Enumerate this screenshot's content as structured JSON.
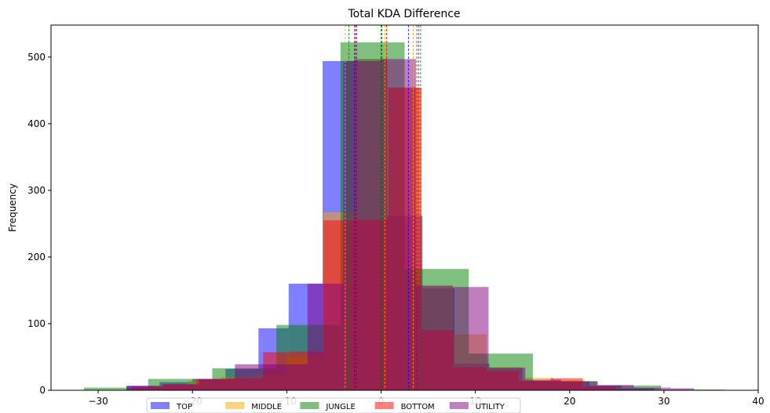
{
  "chart_data": {
    "type": "bar",
    "title": "Total KDA Difference",
    "xlabel": "",
    "ylabel": "Frequency",
    "xlim": [
      -35,
      40
    ],
    "ylim": [
      0,
      548
    ],
    "xticks": [
      -30,
      -20,
      -10,
      0,
      10,
      20,
      30,
      40
    ],
    "xtick_labels": [
      "−30",
      "−20",
      "−10",
      "0",
      "10",
      "20",
      "30",
      "40"
    ],
    "yticks": [
      0,
      100,
      200,
      300,
      400,
      500
    ],
    "ytick_labels": [
      "0",
      "100",
      "200",
      "300",
      "400",
      "500"
    ],
    "grid": false,
    "legend": {
      "placement": "bottom-center",
      "columns": 5
    },
    "series": [
      {
        "name": "TOP",
        "color": "#0000ff",
        "opacity": 0.5,
        "edges": [
          -27,
          -23.5,
          -20,
          -16.5,
          -13,
          -9.8,
          -6.2,
          -2.8,
          0.6,
          4.4,
          7.8,
          11.5,
          15,
          18.6,
          22.1,
          25.5,
          29
        ],
        "values": [
          7,
          12,
          17,
          32,
          93,
          160,
          494,
          497,
          262,
          153,
          40,
          33,
          14,
          13,
          7,
          3
        ],
        "vlines": [
          -2.8,
          2.9
        ]
      },
      {
        "name": "MIDDLE",
        "color": "#ffa500",
        "opacity": 0.5,
        "edges": [
          -24,
          -20.5,
          -17,
          -13.8,
          -10,
          -6.1,
          -2.5,
          0.7,
          4.1,
          7.6,
          11.2,
          14.8,
          18.3,
          21.6,
          25
        ],
        "values": [
          6,
          14,
          20,
          23,
          50,
          267,
          497,
          455,
          157,
          84,
          35,
          19,
          15,
          3
        ],
        "vlines": [
          -3.8,
          0.4,
          3.4
        ]
      },
      {
        "name": "JUNGLE",
        "color": "#008000",
        "opacity": 0.5,
        "edges": [
          -31.5,
          -24.7,
          -17.9,
          -11.1,
          -4.3,
          2.5,
          9.3,
          16.1,
          22.9,
          29.7,
          36.5
        ],
        "values": [
          4,
          17,
          33,
          98,
          522,
          182,
          55,
          14,
          7,
          1
        ],
        "vlines": [
          -3.4,
          0.1,
          4.2
        ]
      },
      {
        "name": "BOTTOM",
        "color": "#ff0000",
        "opacity": 0.5,
        "edges": [
          -26.5,
          -23,
          -19.6,
          -16.2,
          -12.5,
          -9.6,
          -6.1,
          -2.7,
          0.8,
          4.3,
          7.7,
          11.2,
          14.6,
          18,
          21.4,
          24.9
        ],
        "values": [
          6,
          9,
          17,
          18,
          57,
          58,
          255,
          256,
          454,
          90,
          35,
          29,
          14,
          18,
          5
        ],
        "vlines": [
          -2.7,
          0.6,
          4.0
        ]
      },
      {
        "name": "UTILITY",
        "color": "#800080",
        "opacity": 0.5,
        "edges": [
          -27,
          -23.2,
          -19.3,
          -15.5,
          -11.6,
          -7.8,
          -4,
          -0.1,
          3.7,
          7.6,
          11.4,
          15.3,
          19.1,
          23,
          26.8,
          30.7,
          33.2
        ],
        "values": [
          6,
          9,
          17,
          39,
          39,
          160,
          494,
          497,
          157,
          155,
          34,
          16,
          13,
          8,
          4,
          3
        ],
        "vlines": [
          -2.6,
          0.0,
          3.8
        ]
      }
    ]
  }
}
